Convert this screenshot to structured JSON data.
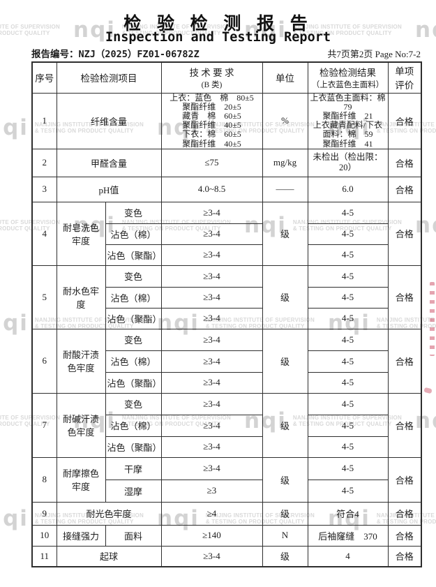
{
  "colors": {
    "watermark_logo_gray": "#d3d3d3",
    "watermark_text_gray": "#d9d9d9",
    "stamp_fragment_red": "#cd5a6e",
    "table_border": "#2e2e2e"
  },
  "watermark": {
    "logo": "NQI",
    "line1": "NANJING INSTITUTE OF SUPERVISION",
    "line2": "& TESTING ON PRODUCT QUALITY"
  },
  "header": {
    "title_cn": "检 验 检 测 报 告",
    "title_en": "Inspection and Testing Report",
    "report_no_label": "报告编号：",
    "report_no": "NZJ（2025）FZ01-06782Z",
    "page_info": "共7页第2页 Page No:7-2"
  },
  "table": {
    "h": {
      "no": "序号",
      "item": "检验检测项目",
      "req_l1": "技 术 要 求",
      "req_l2": "(B 类)",
      "unit": "单位",
      "result_l1": "检验检测结果",
      "result_l2": "（上衣蓝色主面料）",
      "eval_l1": "单项",
      "eval_l2": "评价"
    },
    "r1": {
      "no": "1",
      "item": "纤维含量",
      "req": [
        "上衣：蓝色　棉　80±5",
        "聚酯纤维　20±5",
        "藏青　棉　60±5",
        "聚酯纤维　40±5",
        "下衣：棉　60±5",
        "聚酯纤维　40±5"
      ],
      "unit": "%",
      "result": [
        "上衣蓝色主面料：棉",
        "79",
        "聚酯纤维　21",
        "上衣藏青配料/下衣",
        "面料：棉　59",
        "聚酯纤维　41"
      ],
      "eval": "合格"
    },
    "r2": {
      "no": "2",
      "item": "甲醛含量",
      "req": "≤75",
      "unit": "mg/kg",
      "result": [
        "未检出（检出限：",
        "20）"
      ],
      "eval": "合格"
    },
    "r3": {
      "no": "3",
      "item": "pH值",
      "req": "4.0~8.5",
      "unit": "——",
      "result": "6.0",
      "eval": "合格"
    },
    "r4": {
      "no": "4",
      "item": [
        "耐皂洗色",
        "牢度"
      ],
      "sub": [
        "变色",
        "沾色（棉）",
        "沾色（聚酯）"
      ],
      "req": [
        "≥3-4",
        "≥3-4",
        "≥3-4"
      ],
      "unit": "级",
      "result": [
        "4-5",
        "4-5",
        "4-5"
      ],
      "eval": "合格"
    },
    "r5": {
      "no": "5",
      "item": [
        "耐水色牢",
        "度"
      ],
      "sub": [
        "变色",
        "沾色（棉）",
        "沾色（聚酯）"
      ],
      "req": [
        "≥3-4",
        "≥3-4",
        "≥3-4"
      ],
      "unit": "级",
      "result": [
        "4-5",
        "4-5",
        "4-5"
      ],
      "eval": "合格"
    },
    "r6": {
      "no": "6",
      "item": [
        "耐酸汗渍",
        "色牢度"
      ],
      "sub": [
        "变色",
        "沾色（棉）",
        "沾色（聚酯）"
      ],
      "req": [
        "≥3-4",
        "≥3-4",
        "≥3-4"
      ],
      "unit": "级",
      "result": [
        "4-5",
        "4-5",
        "4-5"
      ],
      "eval": "合格"
    },
    "r7": {
      "no": "7",
      "item": [
        "耐碱汗渍",
        "色牢度"
      ],
      "sub": [
        "变色",
        "沾色（棉）",
        "沾色（聚酯）"
      ],
      "req": [
        "≥3-4",
        "≥3-4",
        "≥3-4"
      ],
      "unit": "级",
      "result": [
        "4-5",
        "4-5",
        "4-5"
      ],
      "eval": "合格"
    },
    "r8": {
      "no": "8",
      "item": [
        "耐摩擦色",
        "牢度"
      ],
      "sub": [
        "干摩",
        "湿摩"
      ],
      "req": [
        "≥3-4",
        "≥3"
      ],
      "unit": "级",
      "result": [
        "4-5",
        "4-5"
      ],
      "eval": "合格"
    },
    "r9": {
      "no": "9",
      "item": "耐光色牢度",
      "req": "≥4",
      "unit": "级",
      "result": "符合4",
      "eval": "合格"
    },
    "r10": {
      "no": "10",
      "item": "接缝强力",
      "sub": "面料",
      "req": "≥140",
      "unit": "N",
      "result": "后袖窿缝　370",
      "eval": "合格"
    },
    "r11": {
      "no": "11",
      "item": "起球",
      "req": "≥3-4",
      "unit": "级",
      "result": "4",
      "eval": "合格"
    }
  }
}
